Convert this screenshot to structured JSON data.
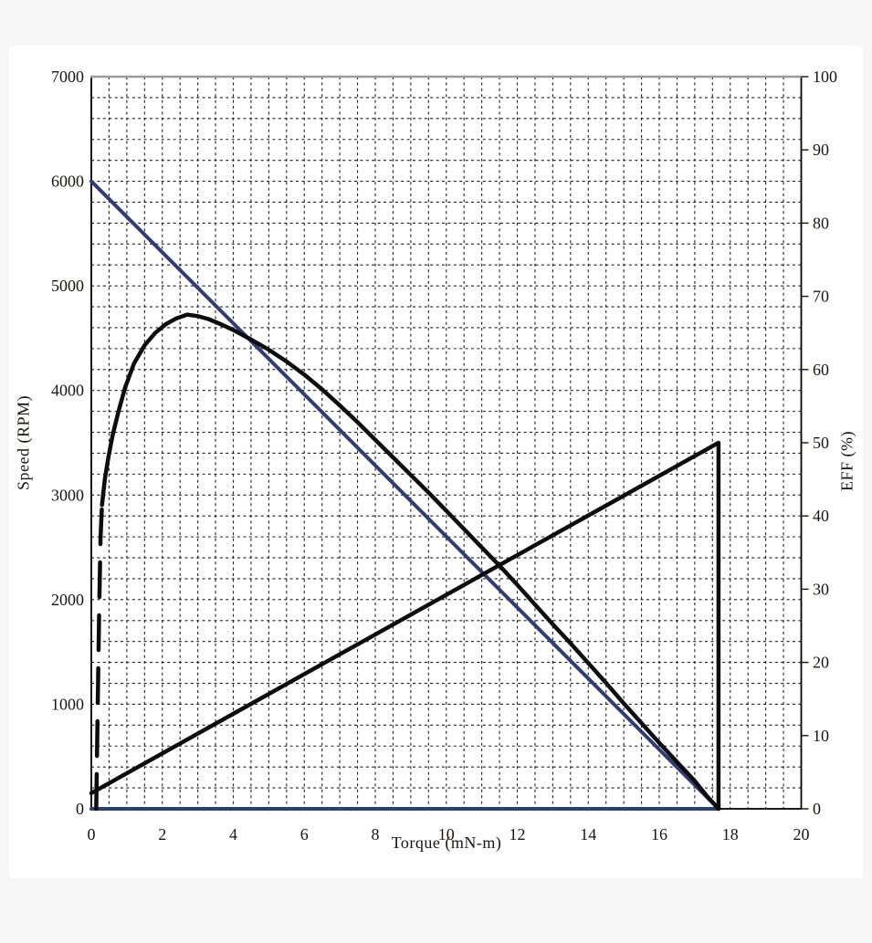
{
  "page": {
    "background": "#f6f6f6",
    "card_background": "#ffffff"
  },
  "chart_data": {
    "type": "line",
    "title": "",
    "xlabel": "Torque (mN-m)",
    "ylabel_left": "Speed (RPM)",
    "ylabel_right": "EFF (%)",
    "grid": {
      "on": true,
      "dashed": true,
      "color": "#1d1d1d"
    },
    "frame_color": "#000000",
    "frame_top_color": "#9b9b9b",
    "tick_text_color": "#1c140c",
    "legend": null,
    "x_axis": {
      "min": 0,
      "max": 20,
      "minor_step": 0.5,
      "ticks": [
        0,
        2,
        4,
        6,
        8,
        10,
        12,
        14,
        16,
        18,
        20
      ]
    },
    "y_left_axis": {
      "min": 0,
      "max": 7000,
      "minor_step": 200,
      "ticks": [
        0,
        1000,
        2000,
        3000,
        4000,
        5000,
        6000,
        7000
      ]
    },
    "y_right_axis": {
      "min": 0,
      "max": 100,
      "minor_step": 10,
      "ticks": [
        0,
        10,
        20,
        30,
        40,
        50,
        60,
        70,
        80,
        90,
        100
      ]
    },
    "stall_torque": 17.67,
    "no_load_speed_rpm": 6000,
    "max_efficiency_pct": 67.5,
    "max_efficiency_at_torque": 2.7,
    "rising_line_end_rpm": 3500,
    "series": [
      {
        "name": "speed-line",
        "axis": "left",
        "color": "#2e3d78",
        "width": 4,
        "style": "solid",
        "points": [
          [
            0,
            6000
          ],
          [
            17.67,
            0
          ]
        ]
      },
      {
        "name": "zero-baseline",
        "axis": "left",
        "color": "#2e3d78",
        "width": 4,
        "style": "solid",
        "points": [
          [
            0,
            0
          ],
          [
            17.67,
            0
          ]
        ]
      },
      {
        "name": "rising-line",
        "axis": "left",
        "color": "#0d0d0d",
        "width": 4.5,
        "style": "solid",
        "points": [
          [
            0,
            150
          ],
          [
            17.67,
            3500
          ],
          [
            17.67,
            0
          ]
        ]
      },
      {
        "name": "efficiency-curve-steep-start",
        "axis": "right",
        "color": "#0d0d0d",
        "width": 4.5,
        "style": "dashed",
        "points": [
          [
            0.14,
            0
          ],
          [
            0.18,
            14
          ],
          [
            0.22,
            27
          ],
          [
            0.26,
            37
          ],
          [
            0.3,
            41.5
          ]
        ]
      },
      {
        "name": "efficiency-curve",
        "axis": "right",
        "color": "#0d0d0d",
        "width": 4.5,
        "style": "solid",
        "points": [
          [
            0.3,
            41.5
          ],
          [
            0.38,
            45
          ],
          [
            0.48,
            48
          ],
          [
            0.6,
            51
          ],
          [
            0.75,
            54
          ],
          [
            0.95,
            57.5
          ],
          [
            1.2,
            60.8
          ],
          [
            1.5,
            63.3
          ],
          [
            1.8,
            65
          ],
          [
            2.1,
            66.2
          ],
          [
            2.4,
            67
          ],
          [
            2.7,
            67.5
          ],
          [
            3.0,
            67.3
          ],
          [
            3.3,
            66.9
          ],
          [
            3.6,
            66.3
          ],
          [
            4.0,
            65.4
          ],
          [
            4.5,
            64.1
          ],
          [
            5.0,
            62.7
          ],
          [
            5.5,
            61.1
          ],
          [
            6.0,
            59.3
          ],
          [
            6.5,
            57.3
          ],
          [
            7.0,
            55.1
          ],
          [
            7.5,
            52.8
          ],
          [
            8.0,
            50.4
          ],
          [
            8.5,
            48.0
          ],
          [
            9.0,
            45.6
          ],
          [
            9.5,
            43.2
          ],
          [
            10.0,
            40.7
          ],
          [
            10.5,
            38.2
          ],
          [
            11.0,
            35.7
          ],
          [
            11.5,
            33.2
          ],
          [
            12.0,
            30.6
          ],
          [
            12.5,
            27.9
          ],
          [
            13.0,
            25.2
          ],
          [
            13.5,
            22.6
          ],
          [
            14.0,
            19.9
          ],
          [
            14.5,
            17.2
          ],
          [
            15.0,
            14.4
          ],
          [
            15.5,
            11.7
          ],
          [
            16.0,
            9.0
          ],
          [
            16.5,
            6.4
          ],
          [
            17.0,
            3.8
          ],
          [
            17.35,
            1.7
          ],
          [
            17.67,
            0
          ]
        ]
      }
    ]
  }
}
